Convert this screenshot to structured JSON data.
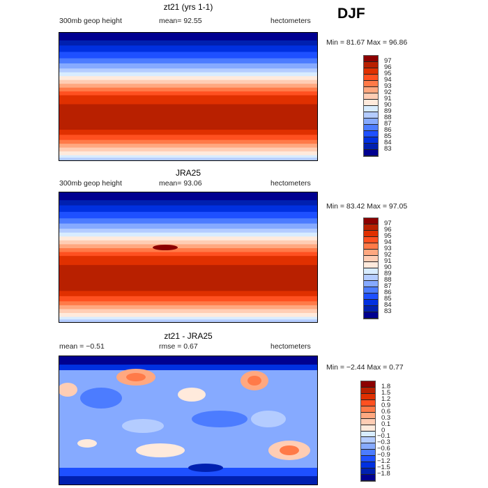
{
  "season": "DJF",
  "colors": [
    "#8c0000",
    "#b82000",
    "#e03000",
    "#ff5020",
    "#ff7a48",
    "#ffa880",
    "#ffcdb4",
    "#ffeadc",
    "#d8ecff",
    "#b4ccff",
    "#86aaff",
    "#4c7cff",
    "#1e50ff",
    "#0030e0",
    "#0020b0",
    "#000090"
  ],
  "panels": [
    {
      "title": "zt21 (yrs 1-1)",
      "left": "300mb geop height",
      "mean": "mean=  92.55",
      "units": "hectometers",
      "minmax": "Min =   81.67 Max =   96.86",
      "levels": [
        "97",
        "96",
        "95",
        "94",
        "93",
        "92",
        "91",
        "90",
        "89",
        "88",
        "87",
        "86",
        "85",
        "84",
        "83"
      ]
    },
    {
      "title": "JRA25",
      "left": "300mb geop height",
      "mean": "mean=  93.06",
      "units": "hectometers",
      "minmax": "Min =   83.42 Max =   97.05",
      "levels": [
        "97",
        "96",
        "95",
        "94",
        "93",
        "92",
        "91",
        "90",
        "89",
        "88",
        "87",
        "86",
        "85",
        "84",
        "83"
      ]
    },
    {
      "title": "zt21 - JRA25",
      "left": "mean =   −0.51",
      "mean": "rmse =    0.67",
      "units": "hectometers",
      "minmax": "Min =   −2.44 Max =    0.77",
      "levels": [
        "1.8",
        "1.5",
        "1.2",
        "0.9",
        "0.6",
        "0.3",
        "0.1",
        "0",
        "−0.1",
        "−0.3",
        "−0.6",
        "−0.9",
        "−1.2",
        "−1.5",
        "−1.8"
      ]
    }
  ],
  "chart_data": [
    {
      "type": "heatmap",
      "title": "zt21 (yrs 1-1)",
      "variable": "300mb geop height",
      "units": "hectometers",
      "mean": 92.55,
      "min": 81.67,
      "max": 96.86
    },
    {
      "type": "heatmap",
      "title": "JRA25",
      "variable": "300mb geop height",
      "units": "hectometers",
      "mean": 93.06,
      "min": 83.42,
      "max": 97.05
    },
    {
      "type": "heatmap",
      "title": "zt21 - JRA25",
      "units": "hectometers",
      "mean": -0.51,
      "rmse": 0.67,
      "min": -2.44,
      "max": 0.77
    }
  ]
}
